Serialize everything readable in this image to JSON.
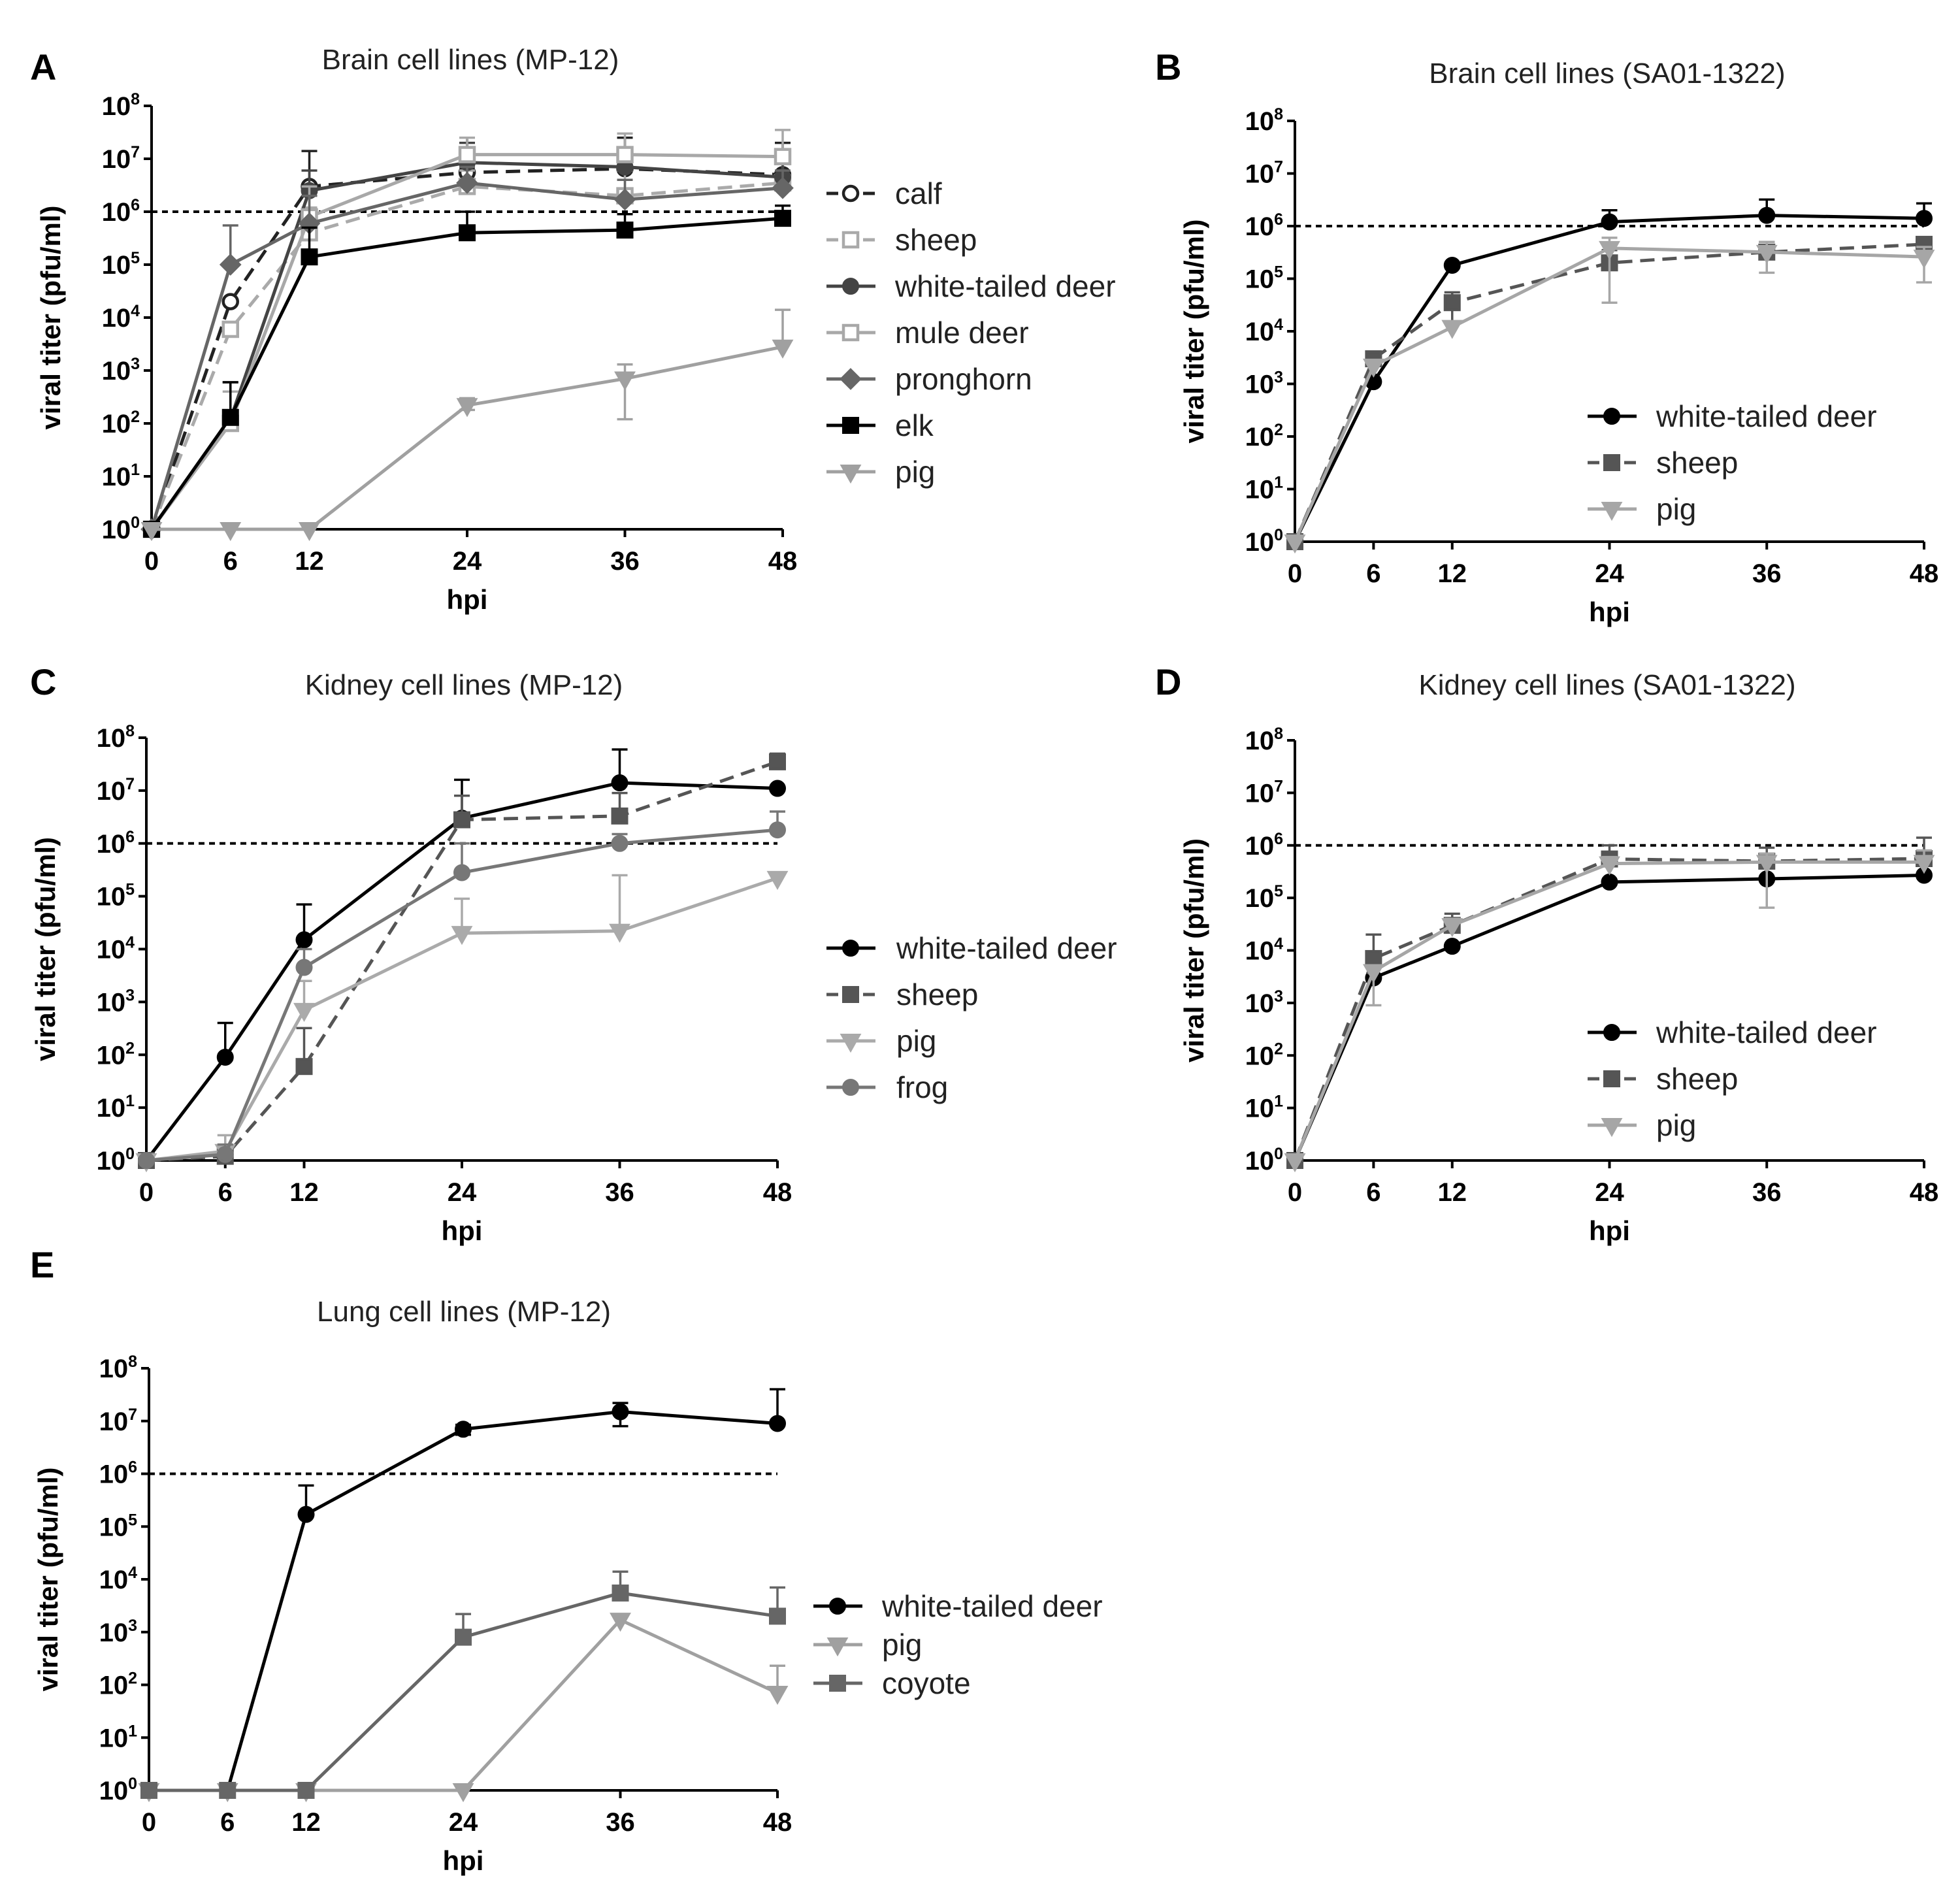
{
  "chart_data": [
    {
      "panel": "A",
      "type": "line",
      "title": "Brain cell lines (MP-12)",
      "xlabel": "hpi",
      "ylabel": "viral titer (pfu/ml)",
      "x": [
        0,
        6,
        12,
        24,
        36,
        48
      ],
      "xticks": [
        "0",
        "6",
        "12",
        "24",
        "36",
        "48"
      ],
      "yscale": "log10",
      "ylim_exp": [
        0,
        8
      ],
      "reference_line": 1000000,
      "series": [
        {
          "name": "calf",
          "color": "#222222",
          "dashed": true,
          "marker": "circle-open",
          "values": [
            1,
            20000,
            3000000,
            5500000,
            6500000,
            5000000
          ],
          "err_upper": [
            1,
            20000,
            14000000,
            25000000,
            25000000,
            20000000
          ]
        },
        {
          "name": "sheep",
          "color": "#aaaaaa",
          "dashed": true,
          "marker": "square-open",
          "values": [
            1,
            6000,
            400000,
            3000000,
            2000000,
            3500000
          ],
          "err_upper": [
            1,
            6000,
            1200000,
            6000000,
            6000000,
            8000000
          ]
        },
        {
          "name": "white-tailed deer",
          "color": "#444444",
          "dashed": false,
          "marker": "circle",
          "values": [
            1,
            120,
            2500000,
            8500000,
            7000000,
            4500000
          ],
          "err_upper": [
            1,
            600,
            6000000,
            20000000,
            15000000,
            12000000
          ]
        },
        {
          "name": "mule deer",
          "color": "#a8a8a8",
          "dashed": false,
          "marker": "square-open",
          "values": [
            1,
            100,
            800000,
            12000000,
            12000000,
            11000000
          ],
          "err_upper": [
            1,
            400,
            3000000,
            25000000,
            30000000,
            35000000
          ]
        },
        {
          "name": "pronghorn",
          "color": "#666666",
          "dashed": false,
          "marker": "diamond",
          "values": [
            1,
            100000,
            600000,
            3500000,
            1700000,
            2800000
          ],
          "err_upper": [
            1,
            550000,
            2000000,
            7000000,
            4000000,
            6000000
          ]
        },
        {
          "name": "elk",
          "color": "#000000",
          "dashed": false,
          "marker": "square",
          "values": [
            1,
            130,
            140000,
            400000,
            450000,
            750000
          ],
          "err_upper": [
            1,
            600,
            500000,
            1000000,
            900000,
            1300000
          ]
        },
        {
          "name": "pig",
          "color": "#a0a0a0",
          "dashed": false,
          "marker": "triangle-down",
          "values": [
            1,
            1,
            1,
            220,
            700,
            2800
          ],
          "err_upper": [
            1,
            1,
            1,
            300,
            1300,
            14000
          ],
          "err_lower": [
            1,
            1,
            1,
            180,
            120,
            2800
          ]
        }
      ]
    },
    {
      "panel": "B",
      "type": "line",
      "title": "Brain cell lines (SA01-1322)",
      "xlabel": "hpi",
      "ylabel": "viral titer (pfu/ml)",
      "x": [
        0,
        6,
        12,
        24,
        36,
        48
      ],
      "xticks": [
        "0",
        "6",
        "12",
        "24",
        "36",
        "48"
      ],
      "yscale": "log10",
      "ylim_exp": [
        0,
        8
      ],
      "reference_line": 1000000,
      "series": [
        {
          "name": "white-tailed deer",
          "color": "#000000",
          "dashed": false,
          "marker": "circle",
          "values": [
            1,
            1100,
            180000,
            1200000,
            1600000,
            1400000
          ],
          "err_upper": [
            1,
            1100,
            180000,
            2000000,
            3200000,
            2700000
          ]
        },
        {
          "name": "sheep",
          "color": "#555555",
          "dashed": true,
          "marker": "square",
          "values": [
            1,
            3000,
            35000,
            200000,
            320000,
            450000
          ],
          "err_upper": [
            1,
            4000,
            55000,
            350000,
            500000,
            600000
          ],
          "err_lower": [
            1,
            3000,
            15000,
            200000,
            320000,
            450000
          ]
        },
        {
          "name": "pig",
          "color": "#a6a6a6",
          "dashed": false,
          "marker": "triangle-down",
          "values": [
            1,
            2200,
            12000,
            380000,
            320000,
            260000
          ],
          "err_upper": [
            1,
            2200,
            12000,
            600000,
            500000,
            400000
          ],
          "err_lower": [
            1,
            2200,
            12000,
            35000,
            130000,
            85000
          ]
        }
      ]
    },
    {
      "panel": "C",
      "type": "line",
      "title": "Kidney cell lines (MP-12)",
      "xlabel": "hpi",
      "ylabel": "viral titer (pfu/ml)",
      "x": [
        0,
        6,
        12,
        24,
        36,
        48
      ],
      "xticks": [
        "0",
        "6",
        "12",
        "24",
        "36",
        "48"
      ],
      "yscale": "log10",
      "ylim_exp": [
        0,
        8
      ],
      "reference_line": 1000000,
      "series": [
        {
          "name": "white-tailed deer",
          "color": "#000000",
          "dashed": false,
          "marker": "circle",
          "values": [
            1,
            90,
            15000,
            3000000,
            14000000,
            11000000
          ],
          "err_upper": [
            1,
            400,
            70000,
            16000000,
            60000000,
            11000000
          ]
        },
        {
          "name": "sheep",
          "color": "#555555",
          "dashed": true,
          "marker": "square",
          "values": [
            1,
            1.2,
            60,
            2800000,
            3300000,
            35000000
          ],
          "err_upper": [
            1,
            1.2,
            320,
            8000000,
            9000000,
            50000000
          ]
        },
        {
          "name": "pig",
          "color": "#aaaaaa",
          "dashed": false,
          "marker": "triangle-down",
          "values": [
            1,
            1.5,
            700,
            20000,
            22000,
            220000
          ],
          "err_upper": [
            1,
            3,
            2500,
            90000,
            250000,
            220000
          ]
        },
        {
          "name": "frog",
          "color": "#777777",
          "dashed": false,
          "marker": "circle",
          "values": [
            1,
            1.3,
            4500,
            280000,
            1000000,
            1800000
          ],
          "err_upper": [
            1,
            2,
            10000,
            1000000,
            1500000,
            4000000
          ]
        }
      ]
    },
    {
      "panel": "D",
      "type": "line",
      "title": "Kidney cell lines (SA01-1322)",
      "xlabel": "hpi",
      "ylabel": "viral titer (pfu/ml)",
      "x": [
        0,
        6,
        12,
        24,
        36,
        48
      ],
      "xticks": [
        "0",
        "6",
        "12",
        "24",
        "36",
        "48"
      ],
      "yscale": "log10",
      "ylim_exp": [
        0,
        8
      ],
      "reference_line": 1000000,
      "series": [
        {
          "name": "white-tailed deer",
          "color": "#000000",
          "dashed": false,
          "marker": "circle",
          "values": [
            1,
            3000,
            12000,
            200000,
            230000,
            270000
          ],
          "err_upper": [
            1,
            3000,
            12000,
            200000,
            230000,
            270000
          ]
        },
        {
          "name": "sheep",
          "color": "#555555",
          "dashed": true,
          "marker": "square",
          "values": [
            1,
            7000,
            30000,
            550000,
            500000,
            560000
          ],
          "err_upper": [
            1,
            20000,
            50000,
            1000000,
            900000,
            1400000
          ]
        },
        {
          "name": "pig",
          "color": "#a6a6a6",
          "dashed": false,
          "marker": "triangle-down",
          "values": [
            1,
            4000,
            30000,
            450000,
            480000,
            480000
          ],
          "err_upper": [
            1,
            4000,
            40000,
            600000,
            700000,
            800000
          ],
          "err_lower": [
            1,
            900,
            30000,
            450000,
            65000,
            480000
          ]
        }
      ]
    },
    {
      "panel": "E",
      "type": "line",
      "title": "Lung cell lines (MP-12)",
      "xlabel": "hpi",
      "ylabel": "viral titer (pfu/ml)",
      "x": [
        0,
        6,
        12,
        24,
        36,
        48
      ],
      "xticks": [
        "0",
        "6",
        "12",
        "24",
        "36",
        "48"
      ],
      "yscale": "log10",
      "ylim_exp": [
        0,
        8
      ],
      "reference_line": 1000000,
      "series": [
        {
          "name": "white-tailed deer",
          "color": "#000000",
          "dashed": false,
          "marker": "circle",
          "values": [
            1,
            1,
            170000,
            7000000,
            15000000,
            9000000
          ],
          "err_upper": [
            1,
            1,
            600000,
            8500000,
            22000000,
            40000000
          ],
          "err_lower": [
            1,
            1,
            170000,
            5500000,
            8000000,
            9000000
          ]
        },
        {
          "name": "pig",
          "color": "#a0a0a0",
          "dashed": false,
          "marker": "triangle-down",
          "values": [
            1,
            1,
            1,
            1,
            1700,
            70
          ],
          "err_upper": [
            1,
            1,
            1,
            1,
            1700,
            230
          ]
        },
        {
          "name": "coyote",
          "color": "#666666",
          "dashed": false,
          "marker": "square",
          "values": [
            1,
            1,
            1,
            800,
            5500,
            2000
          ],
          "err_upper": [
            1,
            1,
            1,
            2200,
            14000,
            7000
          ]
        }
      ]
    }
  ]
}
